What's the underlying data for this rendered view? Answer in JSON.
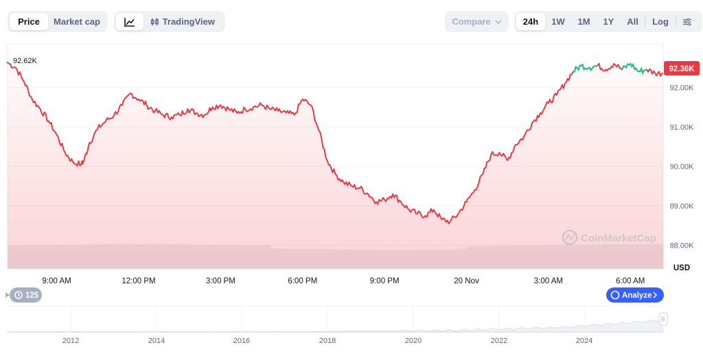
{
  "toolbar": {
    "view_tabs": [
      "Price",
      "Market cap"
    ],
    "chart_mode_label": "TradingView",
    "compare_label": "Compare",
    "ranges": [
      "24h",
      "1W",
      "1M",
      "1Y",
      "All"
    ],
    "log_label": "Log"
  },
  "badges": {
    "high_label": "92.62K",
    "current_price": "92.36K",
    "events_count": "125",
    "analyze_label": "Analyze"
  },
  "watermark": "CoinMarketCap",
  "currency": "USD",
  "colors": {
    "line": "#ea3943",
    "line_up": "#16c784",
    "accent": "#3861fb"
  },
  "chart_data": {
    "type": "line",
    "ylim": [
      87400,
      93100
    ],
    "ytick_labels": [
      "92.00K",
      "91.00K",
      "90.00K",
      "89.00K",
      "88.00K"
    ],
    "ytick_values": [
      92000,
      91000,
      90000,
      89000,
      88000
    ],
    "xtick_labels": [
      "9:00 AM",
      "12:00 PM",
      "3:00 PM",
      "6:00 PM",
      "9:00 PM",
      "20 Nov",
      "3:00 AM",
      "6:00 AM"
    ],
    "xtick_hours": [
      1.8,
      4.8,
      7.8,
      10.8,
      13.8,
      16.8,
      19.8,
      22.8
    ],
    "x_hours": [
      0,
      0.3,
      0.6,
      0.9,
      1.2,
      1.5,
      1.8,
      2.1,
      2.4,
      2.7,
      2.8,
      3.0,
      3.3,
      3.6,
      3.9,
      4.2,
      4.5,
      4.8,
      5.1,
      5.4,
      5.7,
      6.0,
      6.3,
      6.6,
      6.9,
      7.2,
      7.5,
      7.8,
      8.1,
      8.4,
      8.7,
      9.0,
      9.3,
      9.6,
      9.9,
      10.2,
      10.5,
      10.8,
      11.1,
      11.4,
      11.7,
      12.0,
      12.3,
      12.6,
      12.9,
      13.2,
      13.5,
      13.8,
      14.1,
      14.4,
      14.7,
      15.0,
      15.3,
      15.6,
      15.9,
      16.2,
      16.5,
      16.8,
      17.1,
      17.4,
      17.7,
      18.0,
      18.3,
      18.6,
      18.9,
      19.2,
      19.5,
      19.8,
      20.1,
      20.4,
      20.7,
      21.0,
      21.3,
      21.6,
      21.9,
      22.2,
      22.5,
      22.8,
      23.1,
      23.4,
      23.7,
      24.0
    ],
    "prices": [
      92620,
      92500,
      92150,
      91700,
      91450,
      91150,
      90800,
      90350,
      90100,
      90050,
      90150,
      90600,
      90950,
      91150,
      91300,
      91550,
      91850,
      91700,
      91550,
      91400,
      91300,
      91250,
      91300,
      91450,
      91350,
      91300,
      91500,
      91550,
      91450,
      91350,
      91450,
      91500,
      91550,
      91450,
      91400,
      91350,
      91300,
      91700,
      91550,
      90900,
      90150,
      89800,
      89600,
      89500,
      89450,
      89300,
      89100,
      89150,
      89300,
      89100,
      88900,
      88800,
      88750,
      88900,
      88650,
      88600,
      88800,
      89100,
      89400,
      89800,
      90300,
      90350,
      90150,
      90550,
      90750,
      91100,
      91350,
      91600,
      91800,
      92100,
      92400,
      92550,
      92500,
      92550,
      92450,
      92600,
      92450,
      92600,
      92400,
      92450,
      92360,
      92360
    ],
    "green_segments": [
      [
        20.7,
        21.6
      ],
      [
        22.5,
        23.4
      ]
    ],
    "volume_range": "values shown as bars only",
    "navigator_xtick_labels": [
      "2012",
      "2014",
      "2016",
      "2018",
      "2020",
      "2022",
      "2024"
    ]
  }
}
